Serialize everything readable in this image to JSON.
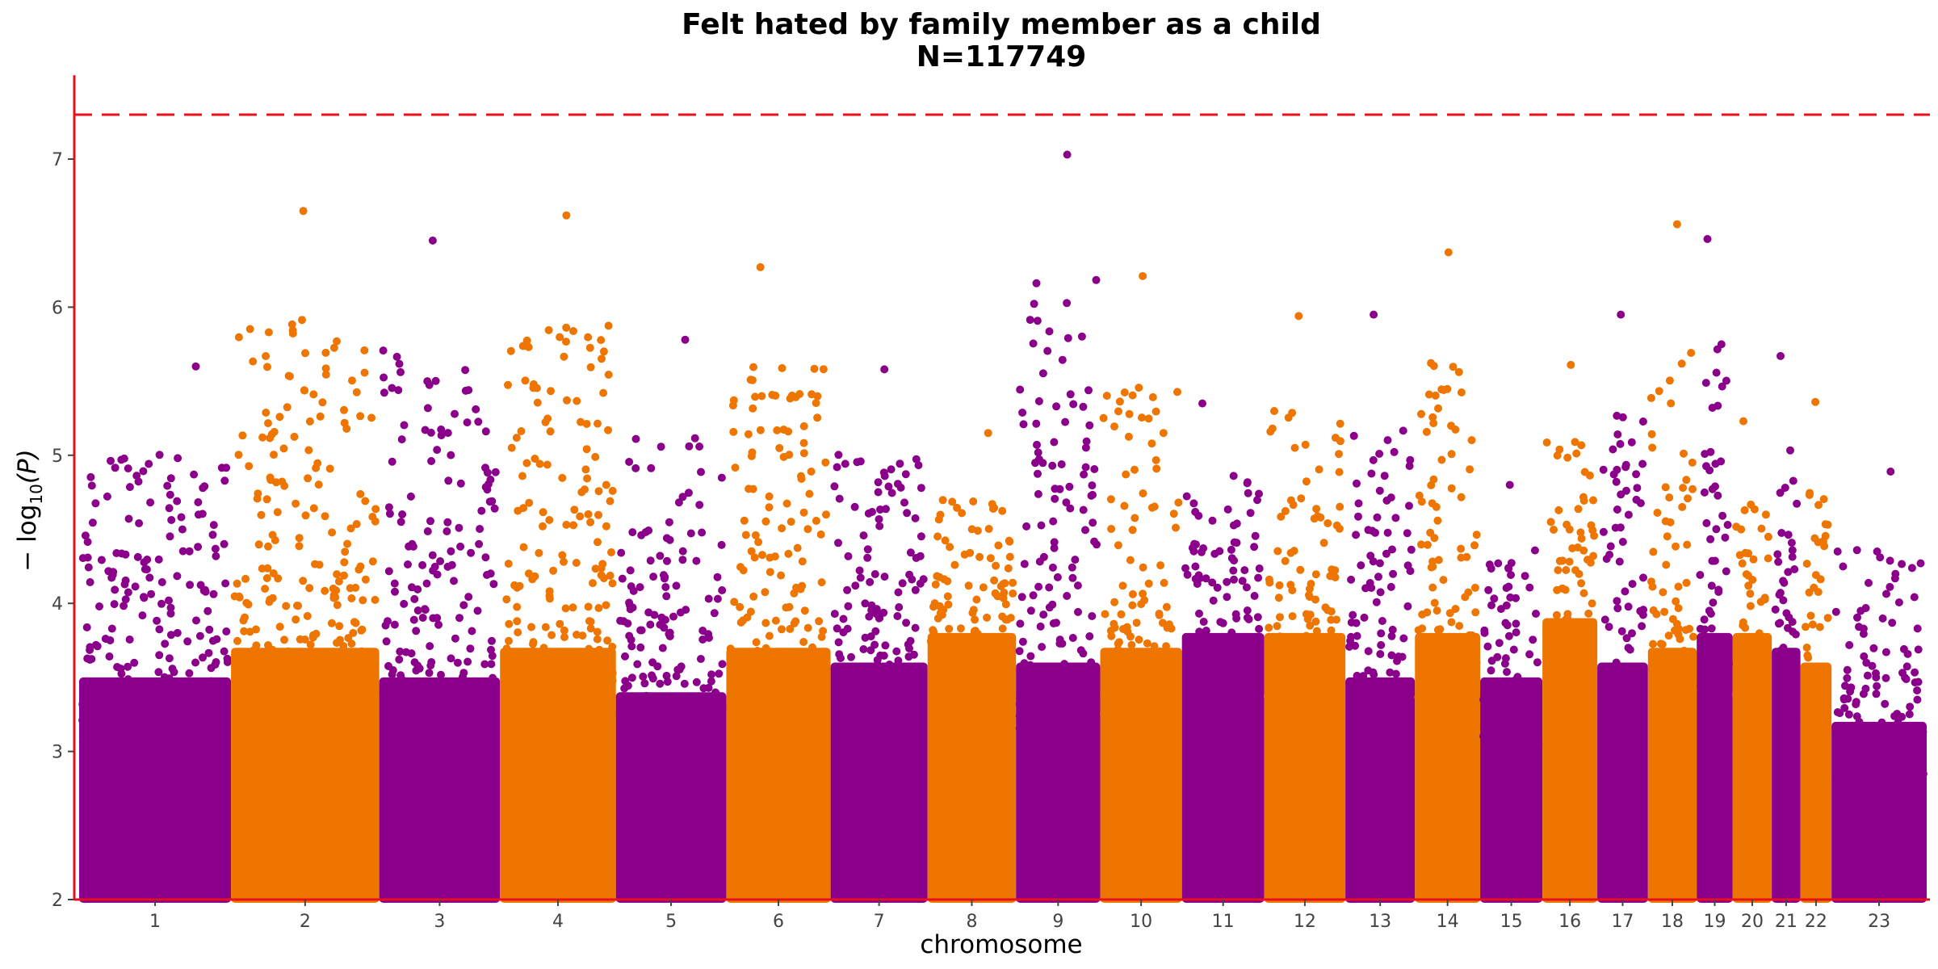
{
  "chart_data": {
    "type": "scatter",
    "title_lines": [
      "Felt hated by family member as a child",
      "N=117749"
    ],
    "xlabel": "chromosome",
    "ylabel_main": "− log",
    "ylabel_sub": "10",
    "ylabel_tail": "(P)",
    "ylim": [
      2,
      7.5
    ],
    "yticks": [
      2,
      3,
      4,
      5,
      6,
      7
    ],
    "significance_line": 7.3,
    "colors": {
      "odd": "#8B008B",
      "even": "#EE7600",
      "axis": "#E8101A",
      "threshold": "#E8101A"
    },
    "chromosomes": [
      {
        "label": "1",
        "start": 0,
        "end": 249,
        "top": 5.6,
        "base": 3.5
      },
      {
        "label": "2",
        "start": 249,
        "end": 492,
        "top": 6.65,
        "base": 3.7
      },
      {
        "label": "3",
        "start": 492,
        "end": 690,
        "top": 6.45,
        "base": 3.5
      },
      {
        "label": "4",
        "start": 690,
        "end": 880,
        "top": 6.62,
        "base": 3.7
      },
      {
        "label": "5",
        "start": 880,
        "end": 1061,
        "top": 5.78,
        "base": 3.4
      },
      {
        "label": "6",
        "start": 1061,
        "end": 1232,
        "top": 6.27,
        "base": 3.7
      },
      {
        "label": "7",
        "start": 1232,
        "end": 1391,
        "top": 5.58,
        "base": 3.6
      },
      {
        "label": "8",
        "start": 1391,
        "end": 1536,
        "top": 5.15,
        "base": 3.8
      },
      {
        "label": "9",
        "start": 1536,
        "end": 1674,
        "top": 7.03,
        "base": 3.6
      },
      {
        "label": "10",
        "start": 1674,
        "end": 1808,
        "top": 6.21,
        "base": 3.7
      },
      {
        "label": "11",
        "start": 1808,
        "end": 1943,
        "top": 5.35,
        "base": 3.8
      },
      {
        "label": "12",
        "start": 1943,
        "end": 2076,
        "top": 5.94,
        "base": 3.8
      },
      {
        "label": "13",
        "start": 2076,
        "end": 2190,
        "top": 5.95,
        "base": 3.5
      },
      {
        "label": "14",
        "start": 2190,
        "end": 2297,
        "top": 6.37,
        "base": 3.8
      },
      {
        "label": "15",
        "start": 2297,
        "end": 2399,
        "top": 4.8,
        "base": 3.5
      },
      {
        "label": "16",
        "start": 2399,
        "end": 2489,
        "top": 5.61,
        "base": 3.9
      },
      {
        "label": "17",
        "start": 2489,
        "end": 2572,
        "top": 5.95,
        "base": 3.6
      },
      {
        "label": "18",
        "start": 2572,
        "end": 2652,
        "top": 6.56,
        "base": 3.7
      },
      {
        "label": "19",
        "start": 2652,
        "end": 2711,
        "top": 6.46,
        "base": 3.8
      },
      {
        "label": "20",
        "start": 2711,
        "end": 2775,
        "top": 5.23,
        "base": 3.8
      },
      {
        "label": "21",
        "start": 2775,
        "end": 2822,
        "top": 5.67,
        "base": 3.7
      },
      {
        "label": "22",
        "start": 2822,
        "end": 2873,
        "top": 5.36,
        "base": 3.6
      },
      {
        "label": "23",
        "start": 2873,
        "end": 3029,
        "top": 4.89,
        "base": 3.2
      }
    ]
  }
}
